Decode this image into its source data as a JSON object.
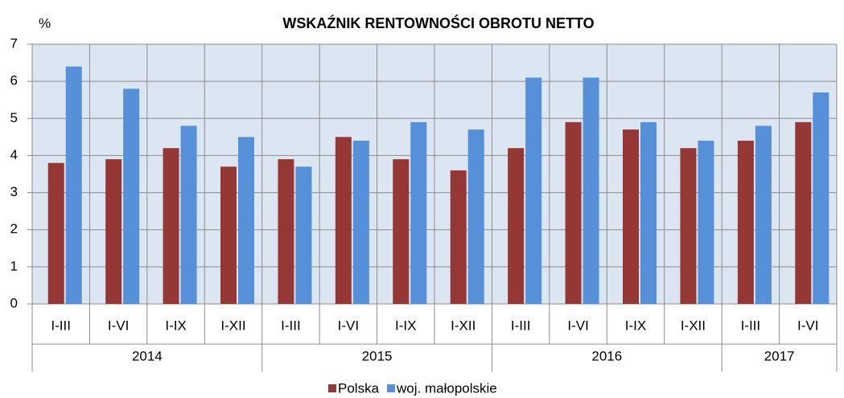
{
  "chart_data": {
    "type": "bar",
    "title": "WSKAŹNIK  RENTOWNOŚCI  OBROTU  NETTO",
    "y_label": "%",
    "categories": [
      "I-III",
      "I-VI",
      "I-IX",
      "I-XII",
      "I-III",
      "I-VI",
      "I-IX",
      "I-XII",
      "I-III",
      "I-VI",
      "I-IX",
      "I-XII",
      "I-III",
      "I-VI"
    ],
    "category_groups": [
      "2014",
      "2014",
      "2014",
      "2014",
      "2015",
      "2015",
      "2015",
      "2015",
      "2016",
      "2016",
      "2016",
      "2016",
      "2017",
      "2017"
    ],
    "series": [
      {
        "name": "Polska",
        "color": "#953735",
        "values": [
          3.8,
          3.9,
          4.2,
          3.7,
          3.9,
          4.5,
          3.9,
          3.6,
          4.2,
          4.9,
          4.7,
          4.2,
          4.4,
          4.9
        ]
      },
      {
        "name": "woj. małopolskie",
        "color": "#5590d8",
        "values": [
          6.4,
          5.8,
          4.8,
          4.5,
          3.7,
          4.4,
          4.9,
          4.7,
          6.1,
          6.1,
          4.9,
          4.4,
          4.8,
          5.7
        ]
      }
    ],
    "ylim": [
      0,
      7
    ],
    "yticks": [
      0,
      1,
      2,
      3,
      4,
      5,
      6,
      7
    ],
    "grid": true,
    "legend": "bottom"
  }
}
